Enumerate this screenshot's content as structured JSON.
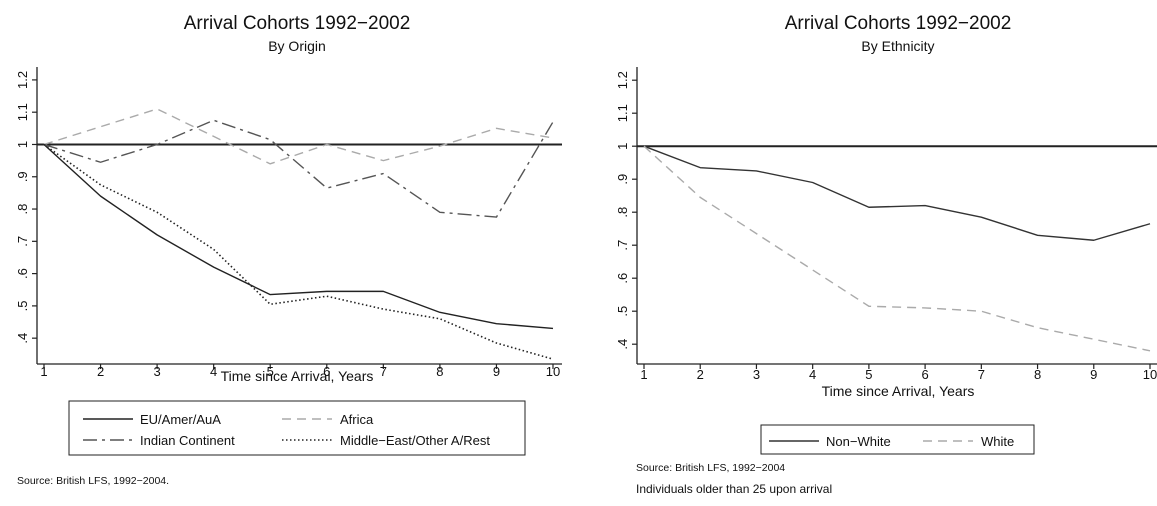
{
  "chart_data": [
    {
      "type": "line",
      "title": "Arrival Cohorts 1992−2002",
      "subtitle": "By Origin",
      "xlabel": "Time since Arrival, Years",
      "ylabel": "",
      "x": [
        1,
        2,
        3,
        4,
        5,
        6,
        7,
        8,
        9,
        10
      ],
      "xticks": [
        "1",
        "2",
        "3",
        "4",
        "5",
        "6",
        "7",
        "8",
        "9",
        "10"
      ],
      "yticks": [
        ".4",
        ".5",
        ".6",
        ".7",
        ".8",
        ".9",
        "1",
        "1.1",
        "1.2"
      ],
      "ylim": [
        0.32,
        1.24
      ],
      "reference_line": 1,
      "grid": false,
      "legend_position": "bottom",
      "series": [
        {
          "name": "EU/Amer/AuA",
          "style": "solid",
          "color": "#222222",
          "values": [
            1.0,
            0.84,
            0.72,
            0.62,
            0.535,
            0.545,
            0.545,
            0.48,
            0.445,
            0.43
          ]
        },
        {
          "name": "Africa",
          "style": "dashed",
          "color": "#aaaaaa",
          "values": [
            1.0,
            1.055,
            1.11,
            1.025,
            0.94,
            1.0,
            0.95,
            0.995,
            1.05,
            1.02
          ]
        },
        {
          "name": "Indian Continent",
          "style": "dashdot",
          "color": "#555555",
          "values": [
            1.0,
            0.945,
            1.0,
            1.075,
            1.015,
            0.865,
            0.91,
            0.79,
            0.775,
            1.07
          ]
        },
        {
          "name": "Middle−East/Other A/Rest",
          "style": "dotted",
          "color": "#222222",
          "values": [
            1.0,
            0.875,
            0.79,
            0.675,
            0.505,
            0.53,
            0.49,
            0.46,
            0.385,
            0.335
          ]
        }
      ],
      "source": "Source: British LFS, 1992−2004."
    },
    {
      "type": "line",
      "title": "Arrival Cohorts 1992−2002",
      "subtitle": "By Ethnicity",
      "xlabel": "Time since Arrival, Years",
      "ylabel": "",
      "x": [
        1,
        2,
        3,
        4,
        5,
        6,
        7,
        8,
        9,
        10
      ],
      "xticks": [
        "1",
        "2",
        "3",
        "4",
        "5",
        "6",
        "7",
        "8",
        "9",
        "10"
      ],
      "yticks": [
        ".4",
        ".5",
        ".6",
        ".7",
        ".8",
        ".9",
        "1",
        "1.1",
        "1.2"
      ],
      "ylim": [
        0.34,
        1.24
      ],
      "reference_line": 1,
      "grid": false,
      "legend_position": "bottom",
      "series": [
        {
          "name": "Non−White",
          "style": "solid",
          "color": "#333333",
          "values": [
            1.0,
            0.935,
            0.925,
            0.89,
            0.815,
            0.82,
            0.785,
            0.73,
            0.715,
            0.765
          ]
        },
        {
          "name": "White",
          "style": "dashed",
          "color": "#aaaaaa",
          "values": [
            1.0,
            0.845,
            0.735,
            0.625,
            0.515,
            0.51,
            0.5,
            0.45,
            0.415,
            0.38
          ]
        }
      ],
      "source": "Source: British LFS, 1992−2004",
      "note": "Individuals older than 25 upon arrival"
    }
  ]
}
